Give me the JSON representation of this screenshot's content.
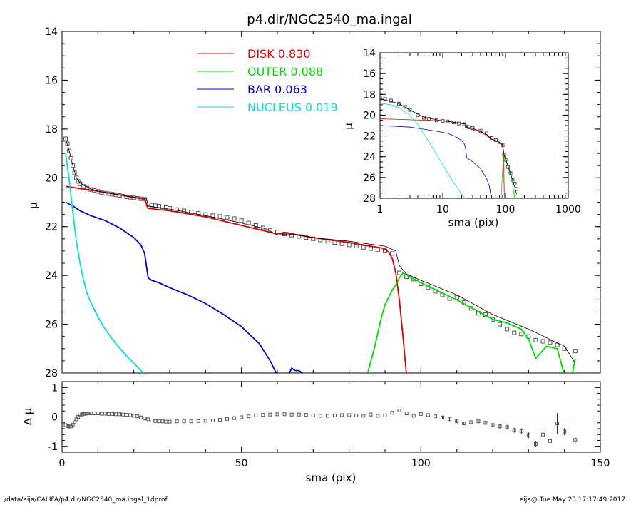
{
  "page": {
    "title": "p4.dir/NGC2540_ma.ingal",
    "footer_left": "/data/eija/CALIFA/p4.dir/NGC2540_ma.ingal_1dprof",
    "footer_right": "eija@  Tue May 23 17:17:49 2017"
  },
  "legend": [
    {
      "label": "DISK",
      "value": "0.830",
      "color": "#dd0000"
    },
    {
      "label": "OUTER",
      "value": "0.088",
      "color": "#00dd00"
    },
    {
      "label": "BAR",
      "value": "0.063",
      "color": "#0000bb"
    },
    {
      "label": "NUCLEUS",
      "value": "0.019",
      "color": "#00dddd"
    }
  ],
  "chart_data": [
    {
      "id": "main",
      "type": "line",
      "xlabel": "",
      "ylabel": "μ",
      "xlim": [
        0,
        150
      ],
      "ylim": [
        28,
        14
      ],
      "y_inverted": true,
      "xticks": [
        0,
        50,
        100,
        150
      ],
      "yticks": [
        14,
        16,
        18,
        20,
        22,
        24,
        26,
        28
      ],
      "observed": {
        "marker": "square",
        "x": [
          1,
          1.5,
          2,
          2.5,
          3,
          3.5,
          4,
          4.5,
          5,
          6,
          7,
          8,
          9,
          10,
          11,
          12,
          13,
          14,
          15,
          16,
          17,
          18,
          19,
          20,
          21,
          22,
          23,
          24,
          25,
          26,
          27,
          28,
          29,
          30,
          32,
          34,
          36,
          38,
          40,
          42,
          44,
          46,
          48,
          50,
          52,
          54,
          56,
          58,
          60,
          62,
          64,
          66,
          68,
          70,
          72,
          74,
          76,
          78,
          80,
          82,
          84,
          86,
          88,
          90,
          92,
          94,
          96,
          98,
          100,
          102,
          104,
          106,
          108,
          110,
          112,
          114,
          116,
          118,
          120,
          122,
          124,
          126,
          128,
          130,
          132,
          134,
          136,
          138,
          140,
          143
        ],
        "y": [
          18.4,
          18.6,
          18.9,
          19.2,
          19.5,
          19.8,
          20.0,
          20.15,
          20.25,
          20.35,
          20.42,
          20.48,
          20.52,
          20.56,
          20.6,
          20.63,
          20.65,
          20.67,
          20.7,
          20.72,
          20.75,
          20.78,
          20.8,
          20.82,
          20.84,
          20.86,
          20.88,
          21.1,
          21.12,
          21.14,
          21.16,
          21.19,
          21.22,
          21.25,
          21.3,
          21.35,
          21.4,
          21.45,
          21.5,
          21.55,
          21.58,
          21.62,
          21.67,
          21.75,
          21.85,
          21.95,
          22.05,
          22.15,
          22.22,
          22.3,
          22.35,
          22.4,
          22.45,
          22.5,
          22.55,
          22.6,
          22.65,
          22.7,
          22.75,
          22.8,
          22.85,
          22.9,
          22.95,
          23.0,
          23.1,
          23.9,
          24.05,
          24.15,
          24.35,
          24.5,
          24.65,
          24.8,
          24.95,
          24.9,
          25.1,
          25.35,
          25.55,
          25.6,
          25.8,
          26.0,
          26.2,
          26.35,
          26.4,
          26.5,
          26.65,
          26.7,
          26.75,
          26.85,
          27.0,
          27.1
        ]
      },
      "model_total": {
        "color": "#000000",
        "x": [
          1,
          2,
          3,
          4,
          5,
          6,
          8,
          10,
          14,
          18,
          22,
          23.5,
          24,
          26,
          30,
          40,
          50,
          57,
          60,
          63,
          66,
          70,
          80,
          90,
          93,
          94,
          96,
          100,
          110,
          120,
          130,
          140,
          143
        ],
        "y": [
          18.4,
          18.9,
          19.5,
          20.0,
          20.2,
          20.3,
          20.45,
          20.55,
          20.65,
          20.75,
          20.83,
          20.85,
          21.15,
          21.2,
          21.28,
          21.55,
          21.85,
          22.1,
          22.35,
          22.3,
          22.35,
          22.45,
          22.6,
          22.8,
          23.0,
          23.6,
          23.95,
          24.2,
          24.8,
          25.6,
          26.2,
          26.9,
          27.6
        ]
      },
      "series": [
        {
          "name": "DISK",
          "color": "#dd0000",
          "x": [
            1,
            10,
            20,
            23,
            24,
            30,
            40,
            50,
            60,
            63,
            66,
            70,
            80,
            88,
            90,
            91,
            92,
            93,
            94,
            95,
            96
          ],
          "y": [
            20.35,
            20.55,
            20.8,
            20.88,
            21.25,
            21.35,
            21.6,
            21.95,
            22.3,
            22.25,
            22.35,
            22.45,
            22.65,
            22.85,
            22.9,
            23.05,
            23.3,
            23.9,
            25.0,
            26.5,
            28.1
          ]
        },
        {
          "name": "OUTER",
          "color": "#00dd00",
          "x": [
            85,
            87,
            89,
            90,
            91,
            92,
            93,
            94,
            95,
            100,
            110,
            120,
            124,
            128,
            130,
            132,
            135,
            138,
            140,
            142,
            143
          ],
          "y": [
            28.1,
            27.0,
            25.7,
            25.2,
            24.9,
            24.6,
            24.4,
            24.1,
            23.9,
            24.3,
            25.0,
            25.8,
            25.95,
            26.2,
            26.6,
            27.4,
            26.9,
            27.0,
            28.1,
            28.2,
            27.4
          ]
        },
        {
          "name": "BAR",
          "color": "#0000bb",
          "x": [
            1,
            3,
            5,
            8,
            12,
            16,
            20,
            22,
            23,
            23.5,
            24,
            25,
            27,
            30,
            35,
            40,
            45,
            50,
            55,
            58,
            60,
            62,
            63,
            64,
            65,
            66,
            68
          ],
          "y": [
            21.0,
            21.15,
            21.35,
            21.55,
            21.75,
            22.05,
            22.45,
            22.75,
            23.1,
            23.6,
            24.1,
            24.2,
            24.3,
            24.5,
            24.8,
            25.15,
            25.6,
            26.1,
            26.8,
            27.5,
            28.1,
            28.2,
            28.1,
            27.8,
            27.9,
            27.9,
            28.1
          ]
        },
        {
          "name": "NUCLEUS",
          "color": "#00dddd",
          "x": [
            1,
            2,
            3,
            4,
            5,
            6,
            7,
            8,
            10,
            12,
            15,
            18,
            20,
            22,
            23
          ],
          "y": [
            19.0,
            20.1,
            21.4,
            22.6,
            23.5,
            24.2,
            24.75,
            25.1,
            25.7,
            26.2,
            26.8,
            27.3,
            27.6,
            27.9,
            28.1
          ]
        }
      ]
    },
    {
      "id": "inset",
      "type": "line",
      "xlabel": "sma (pix)",
      "ylabel": "μ",
      "xscale": "log",
      "xlim": [
        1,
        1000
      ],
      "ylim": [
        28,
        14
      ],
      "y_inverted": true,
      "xticks": [
        1,
        10,
        100,
        1000
      ],
      "yticks": [
        14,
        16,
        18,
        20,
        22,
        24,
        26,
        28
      ],
      "observed": {
        "marker": "square",
        "x": [
          1,
          1.2,
          1.5,
          2,
          2.5,
          3,
          4,
          5,
          6,
          8,
          10,
          12,
          15,
          18,
          22,
          24,
          26,
          30,
          40,
          50,
          60,
          70,
          80,
          90,
          95,
          100,
          110,
          120,
          130,
          140,
          150
        ],
        "y": [
          18.4,
          18.45,
          18.6,
          18.9,
          19.2,
          19.5,
          20.0,
          20.25,
          20.35,
          20.5,
          20.56,
          20.6,
          20.7,
          20.8,
          20.86,
          21.1,
          21.15,
          21.25,
          21.5,
          21.75,
          22.2,
          22.4,
          22.6,
          22.9,
          23.8,
          24.3,
          25.0,
          25.6,
          26.2,
          26.6,
          27.1
        ]
      },
      "model_total": {
        "color": "#000000",
        "x": [
          1,
          2,
          3,
          5,
          8,
          10,
          14,
          20,
          23,
          24,
          30,
          40,
          50,
          60,
          70,
          80,
          90,
          95,
          100,
          120,
          140,
          150
        ],
        "y": [
          18.4,
          18.9,
          19.5,
          20.2,
          20.45,
          20.55,
          20.65,
          20.8,
          20.85,
          21.15,
          21.28,
          21.55,
          21.85,
          22.3,
          22.45,
          22.6,
          22.85,
          23.8,
          24.2,
          25.6,
          26.9,
          27.6
        ]
      },
      "series": [
        {
          "name": "DISK",
          "color": "#dd0000",
          "x": [
            1,
            10,
            20,
            23,
            24,
            40,
            60,
            80,
            88,
            92,
            94,
            96
          ],
          "y": [
            20.35,
            20.55,
            20.8,
            20.88,
            21.25,
            21.6,
            22.3,
            22.65,
            22.85,
            23.3,
            25.0,
            28.1
          ]
        },
        {
          "name": "OUTER",
          "color": "#00dd00",
          "x": [
            85,
            90,
            93,
            95,
            100,
            110,
            120,
            130,
            140,
            143
          ],
          "y": [
            28.1,
            25.2,
            24.4,
            23.9,
            24.3,
            25.0,
            25.8,
            26.6,
            28.1,
            27.4
          ]
        },
        {
          "name": "BAR",
          "color": "#0000bb",
          "x": [
            1,
            3,
            5,
            8,
            12,
            16,
            20,
            22,
            23,
            24,
            27,
            30,
            40,
            50,
            55,
            60,
            62
          ],
          "y": [
            21.0,
            21.15,
            21.35,
            21.55,
            21.75,
            22.05,
            22.45,
            22.75,
            23.1,
            24.1,
            24.3,
            24.5,
            25.15,
            26.1,
            26.8,
            28.1,
            28.2
          ]
        },
        {
          "name": "NUCLEUS",
          "color": "#00dddd",
          "x": [
            1,
            1.5,
            2,
            3,
            4,
            5,
            7,
            10,
            15,
            20,
            23
          ],
          "y": [
            18.85,
            19.0,
            19.3,
            20.0,
            20.9,
            21.8,
            23.2,
            24.8,
            26.5,
            27.6,
            28.1
          ]
        }
      ]
    },
    {
      "id": "residual",
      "type": "scatter",
      "xlabel": "sma (pix)",
      "ylabel": "Δ μ",
      "xlim": [
        0,
        150
      ],
      "ylim": [
        -1.2,
        1.2
      ],
      "xticks": [
        0,
        50,
        100,
        150
      ],
      "yticks": [
        -1,
        0,
        1
      ],
      "zero_line": true,
      "points": {
        "x": [
          1,
          1.5,
          2,
          2.5,
          3,
          3.5,
          4,
          4.5,
          5,
          5.5,
          6,
          6.5,
          7,
          7.5,
          8,
          9,
          10,
          11,
          12,
          13,
          14,
          15,
          16,
          17,
          18,
          19,
          20,
          21,
          22,
          23,
          24,
          25,
          26,
          27,
          28,
          29,
          30,
          32,
          34,
          36,
          38,
          40,
          42,
          44,
          46,
          48,
          50,
          52,
          54,
          56,
          58,
          60,
          62,
          64,
          66,
          68,
          70,
          72,
          74,
          76,
          78,
          80,
          82,
          84,
          86,
          88,
          90,
          92,
          94,
          96,
          98,
          100,
          102,
          104,
          106,
          108,
          110,
          112,
          114,
          116,
          118,
          120,
          122,
          124,
          126,
          128,
          130,
          132,
          134,
          136,
          138,
          140,
          143
        ],
        "y": [
          -0.28,
          -0.31,
          -0.33,
          -0.32,
          -0.26,
          -0.18,
          -0.08,
          0.0,
          0.05,
          0.08,
          0.1,
          0.11,
          0.12,
          0.12,
          0.12,
          0.12,
          0.12,
          0.11,
          0.11,
          0.1,
          0.1,
          0.09,
          0.09,
          0.08,
          0.07,
          0.06,
          0.04,
          0.02,
          -0.02,
          -0.05,
          -0.08,
          -0.12,
          -0.14,
          -0.15,
          -0.15,
          -0.16,
          -0.16,
          -0.15,
          -0.15,
          -0.15,
          -0.14,
          -0.13,
          -0.12,
          -0.1,
          -0.07,
          -0.04,
          -0.01,
          0.02,
          0.05,
          0.07,
          0.08,
          0.09,
          0.09,
          0.08,
          0.08,
          0.07,
          0.05,
          0.04,
          0.04,
          0.05,
          0.06,
          0.06,
          0.05,
          0.04,
          0.08,
          0.04,
          0.05,
          0.14,
          0.22,
          0.12,
          0.04,
          0.1,
          0.06,
          0.02,
          -0.02,
          -0.08,
          -0.15,
          -0.22,
          -0.18,
          -0.15,
          -0.2,
          -0.28,
          -0.32,
          -0.35,
          -0.45,
          -0.48,
          -0.62,
          -0.92,
          -0.6,
          -0.82,
          -0.22,
          -0.5,
          -0.78
        ],
        "err": [
          0,
          0,
          0,
          0,
          0,
          0,
          0,
          0,
          0,
          0,
          0,
          0,
          0,
          0,
          0,
          0,
          0,
          0,
          0,
          0,
          0,
          0,
          0,
          0,
          0,
          0,
          0,
          0,
          0,
          0,
          0,
          0,
          0,
          0,
          0,
          0,
          0,
          0,
          0,
          0,
          0,
          0,
          0,
          0,
          0,
          0,
          0,
          0,
          0,
          0,
          0,
          0,
          0,
          0,
          0,
          0,
          0,
          0,
          0,
          0,
          0,
          0,
          0,
          0,
          0,
          0,
          0,
          0,
          0,
          0,
          0,
          0,
          0,
          0,
          0.04,
          0.04,
          0.05,
          0.05,
          0.06,
          0.06,
          0.07,
          0.07,
          0.08,
          0.08,
          0.09,
          0.09,
          0.1,
          0.1,
          0.1,
          0.1,
          0.35,
          0.12,
          0.12
        ]
      }
    }
  ]
}
